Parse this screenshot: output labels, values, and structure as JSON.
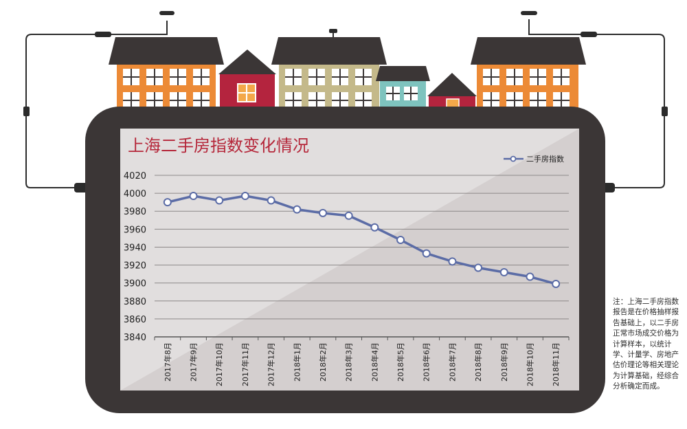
{
  "chart_data": {
    "type": "line",
    "title": "上海二手房指数变化情况",
    "legend": {
      "label": "二手房指数",
      "placement": "top-right"
    },
    "categories": [
      "2017年8月",
      "2017年9月",
      "2017年10月",
      "2017年11月",
      "2017年12月",
      "2018年1月",
      "2018年2月",
      "2018年3月",
      "2018年4月",
      "2018年5月",
      "2018年6月",
      "2018年7月",
      "2018年8月",
      "2018年9月",
      "2018年10月",
      "2018年11月"
    ],
    "series": [
      {
        "name": "二手房指数",
        "values": [
          3990,
          3997,
          3992,
          3997,
          3992,
          3982,
          3978,
          3975,
          3962,
          3948,
          3933,
          3924,
          3917,
          3912,
          3907,
          3899
        ]
      }
    ],
    "ylim": [
      3840,
      4020
    ],
    "yticks": [
      3840,
      3860,
      3880,
      3900,
      3920,
      3940,
      3960,
      3980,
      4000,
      4020
    ],
    "grid": true,
    "line_color": "#5b6ca6"
  },
  "note": "注：上海二手房指数报告是在价格抽样报告基础上，以二手房正常市场成交价格为计算样本，以统计学、计量学、房地产估价理论等相关理论为计算基础，经综合分析确定而成。"
}
